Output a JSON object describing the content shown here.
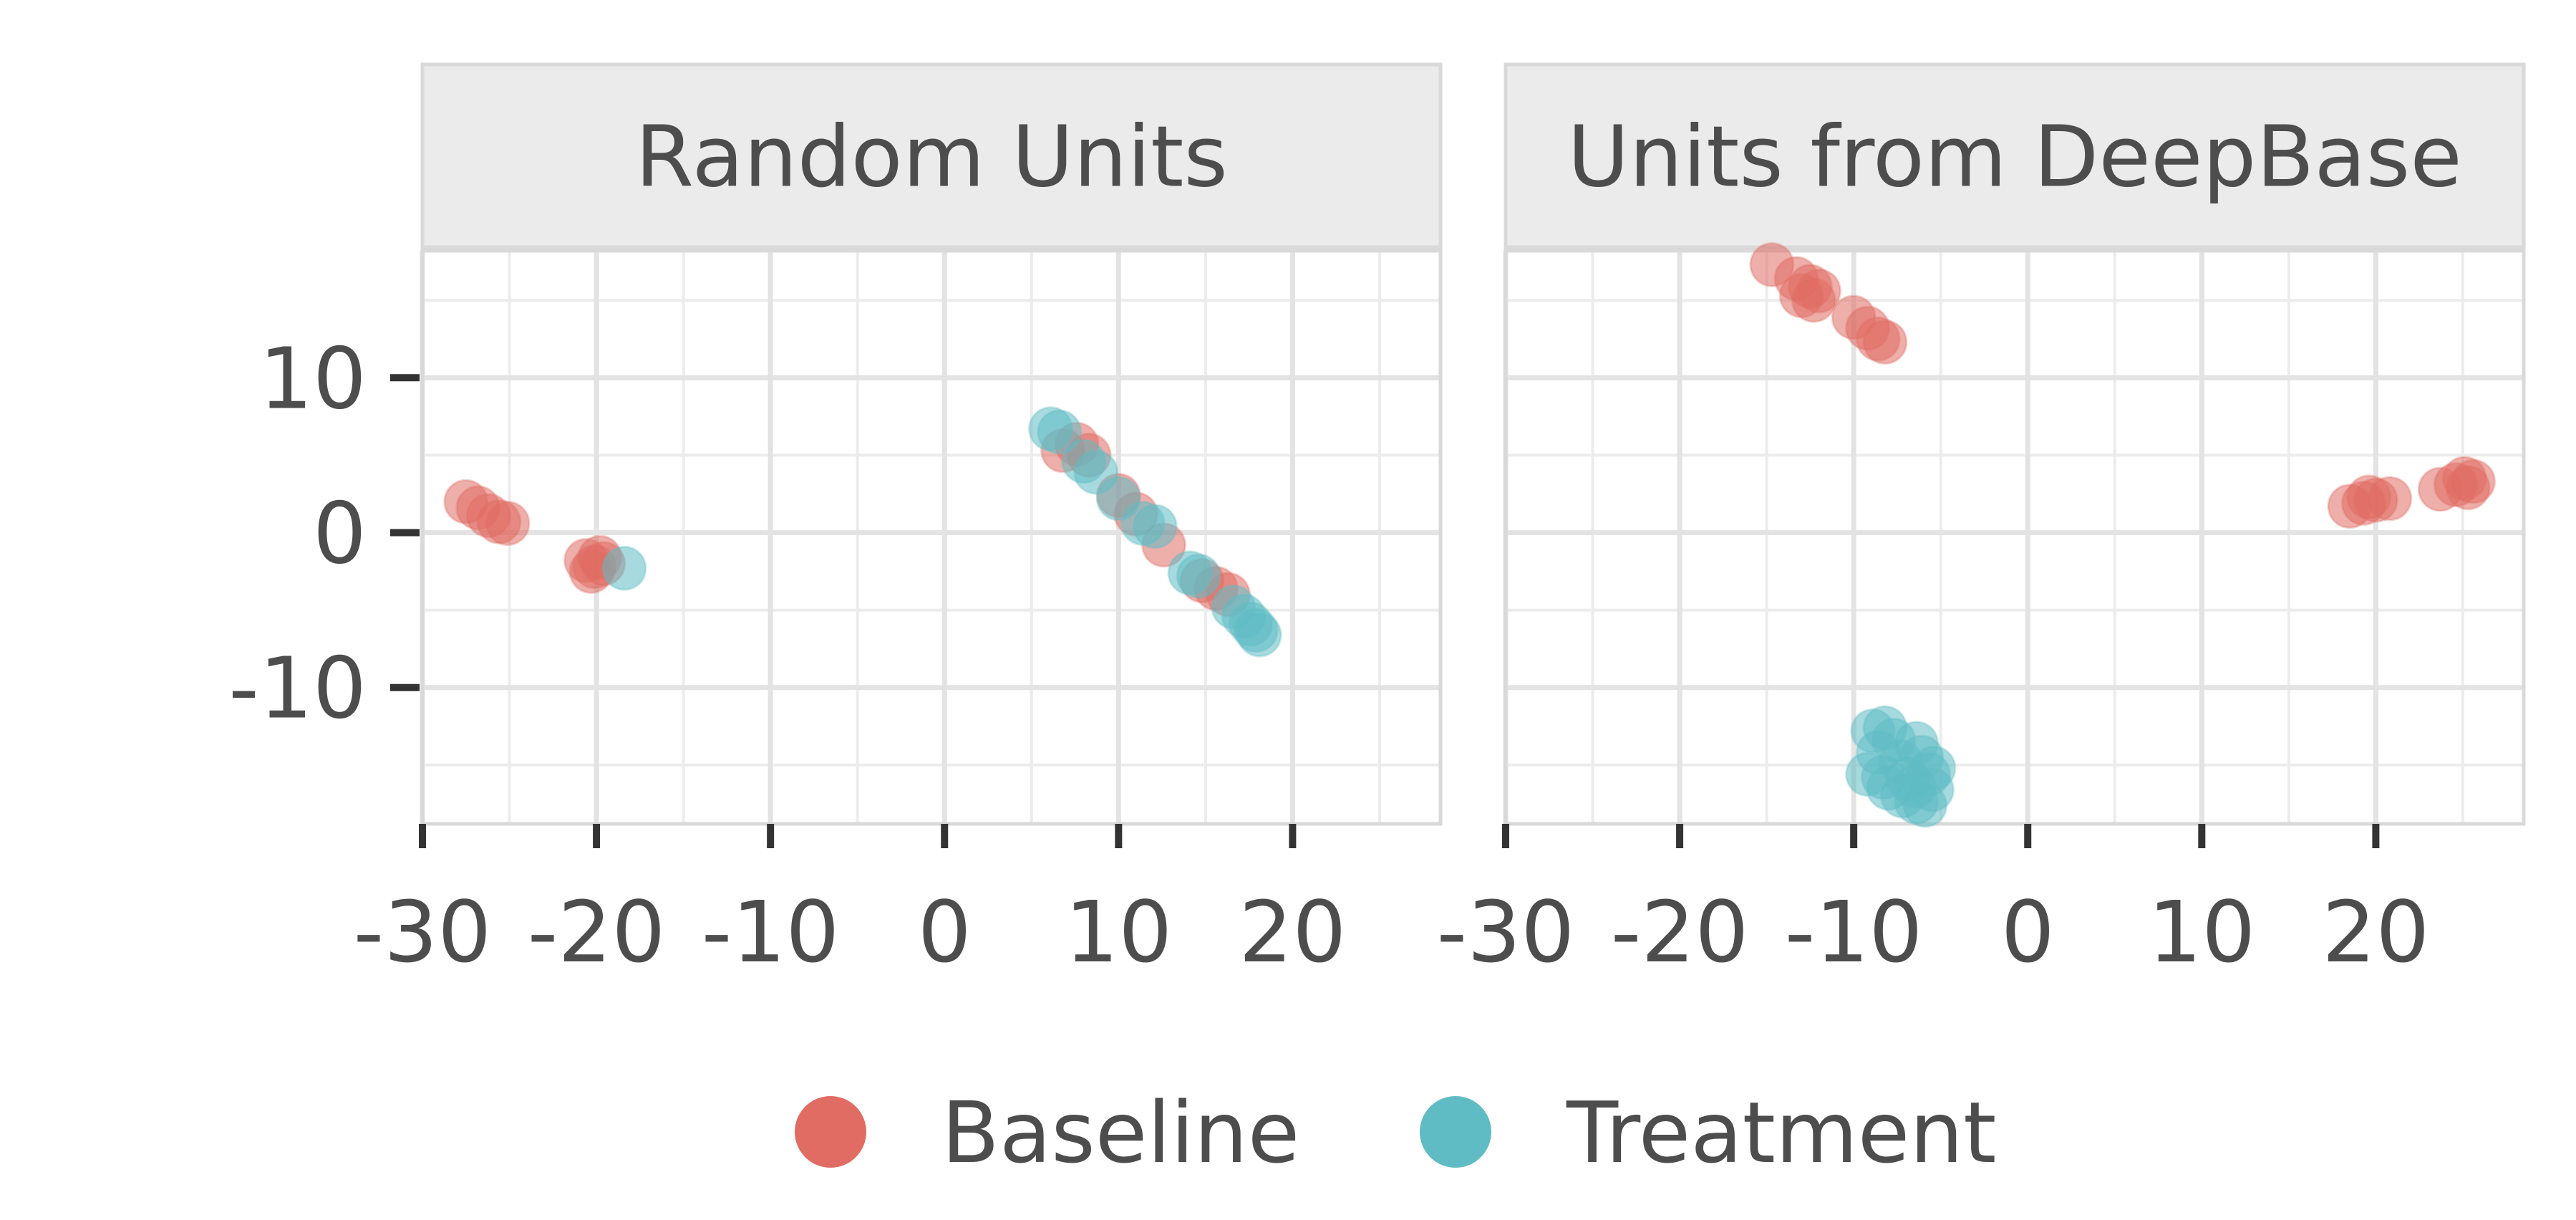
{
  "chart_data": {
    "type": "scatter",
    "panels": [
      {
        "title": "Random Units",
        "series": [
          {
            "name": "Baseline",
            "points": [
              [
                -27.5,
                2.0
              ],
              [
                -26.8,
                1.6
              ],
              [
                -26.2,
                1.1
              ],
              [
                -25.6,
                0.7
              ],
              [
                -25.1,
                0.6
              ],
              [
                -20.6,
                -1.8
              ],
              [
                -20.1,
                -2.2
              ],
              [
                -19.8,
                -1.6
              ],
              [
                -20.3,
                -2.5
              ],
              [
                -19.6,
                -2.0
              ],
              [
                6.8,
                5.3
              ],
              [
                7.6,
                5.7
              ],
              [
                8.3,
                5.0
              ],
              [
                10.0,
                2.4
              ],
              [
                11.0,
                1.2
              ],
              [
                12.6,
                -0.8
              ],
              [
                14.8,
                -3.1
              ],
              [
                15.6,
                -3.6
              ],
              [
                16.3,
                -4.0
              ]
            ]
          },
          {
            "name": "Treatment",
            "points": [
              [
                -18.4,
                -2.3
              ],
              [
                6.1,
                6.7
              ],
              [
                6.6,
                6.5
              ],
              [
                8.0,
                4.6
              ],
              [
                8.7,
                3.9
              ],
              [
                10.0,
                2.2
              ],
              [
                11.4,
                0.6
              ],
              [
                12.1,
                0.4
              ],
              [
                14.1,
                -2.6
              ],
              [
                14.6,
                -2.8
              ],
              [
                16.6,
                -4.8
              ],
              [
                17.2,
                -5.4
              ],
              [
                17.6,
                -5.9
              ],
              [
                17.9,
                -6.3
              ],
              [
                18.1,
                -6.6
              ]
            ]
          }
        ]
      },
      {
        "title": "Units from DeepBase",
        "series": [
          {
            "name": "Baseline",
            "points": [
              [
                -14.7,
                17.3
              ],
              [
                -13.3,
                16.4
              ],
              [
                -12.5,
                15.9
              ],
              [
                -12.0,
                15.6
              ],
              [
                -13.0,
                15.3
              ],
              [
                -12.3,
                15.0
              ],
              [
                -10.0,
                13.9
              ],
              [
                -9.2,
                13.2
              ],
              [
                -8.6,
                12.5
              ],
              [
                -8.2,
                12.3
              ],
              [
                18.5,
                1.7
              ],
              [
                19.3,
                1.9
              ],
              [
                20.0,
                2.1
              ],
              [
                20.8,
                2.2
              ],
              [
                19.6,
                2.3
              ],
              [
                23.7,
                2.8
              ],
              [
                24.6,
                3.1
              ],
              [
                25.1,
                3.5
              ],
              [
                25.6,
                3.3
              ],
              [
                25.3,
                2.9
              ]
            ]
          },
          {
            "name": "Treatment",
            "points": [
              [
                -8.9,
                -12.8
              ],
              [
                -8.2,
                -12.6
              ],
              [
                -7.7,
                -13.4
              ],
              [
                -8.6,
                -14.2
              ],
              [
                -9.2,
                -15.6
              ],
              [
                -8.3,
                -15.8
              ],
              [
                -7.3,
                -14.8
              ],
              [
                -6.4,
                -13.6
              ],
              [
                -6.1,
                -14.5
              ],
              [
                -5.7,
                -15.6
              ],
              [
                -6.5,
                -16.4
              ],
              [
                -7.2,
                -17.0
              ],
              [
                -6.4,
                -17.4
              ],
              [
                -5.4,
                -15.2
              ],
              [
                -5.5,
                -16.6
              ],
              [
                -8.0,
                -16.5
              ],
              [
                -6.9,
                -15.9
              ],
              [
                -5.9,
                -17.6
              ]
            ]
          }
        ]
      }
    ],
    "x_ticks": [
      -30,
      -20,
      -10,
      0,
      10,
      20
    ],
    "x_tick_labels": [
      "-30",
      "-20",
      "-10",
      "0",
      "10",
      "20"
    ],
    "y_ticks": [
      10,
      0,
      -10
    ],
    "y_tick_labels": [
      "10",
      "0",
      "-10"
    ],
    "xlim": [
      -30,
      28.5
    ],
    "ylim": [
      -18.8,
      18.2
    ],
    "grid": true,
    "legend_position": "bottom",
    "legend": [
      {
        "name": "Baseline",
        "color": "#e06c63"
      },
      {
        "name": "Treatment",
        "color": "#5fbcc4"
      }
    ]
  }
}
